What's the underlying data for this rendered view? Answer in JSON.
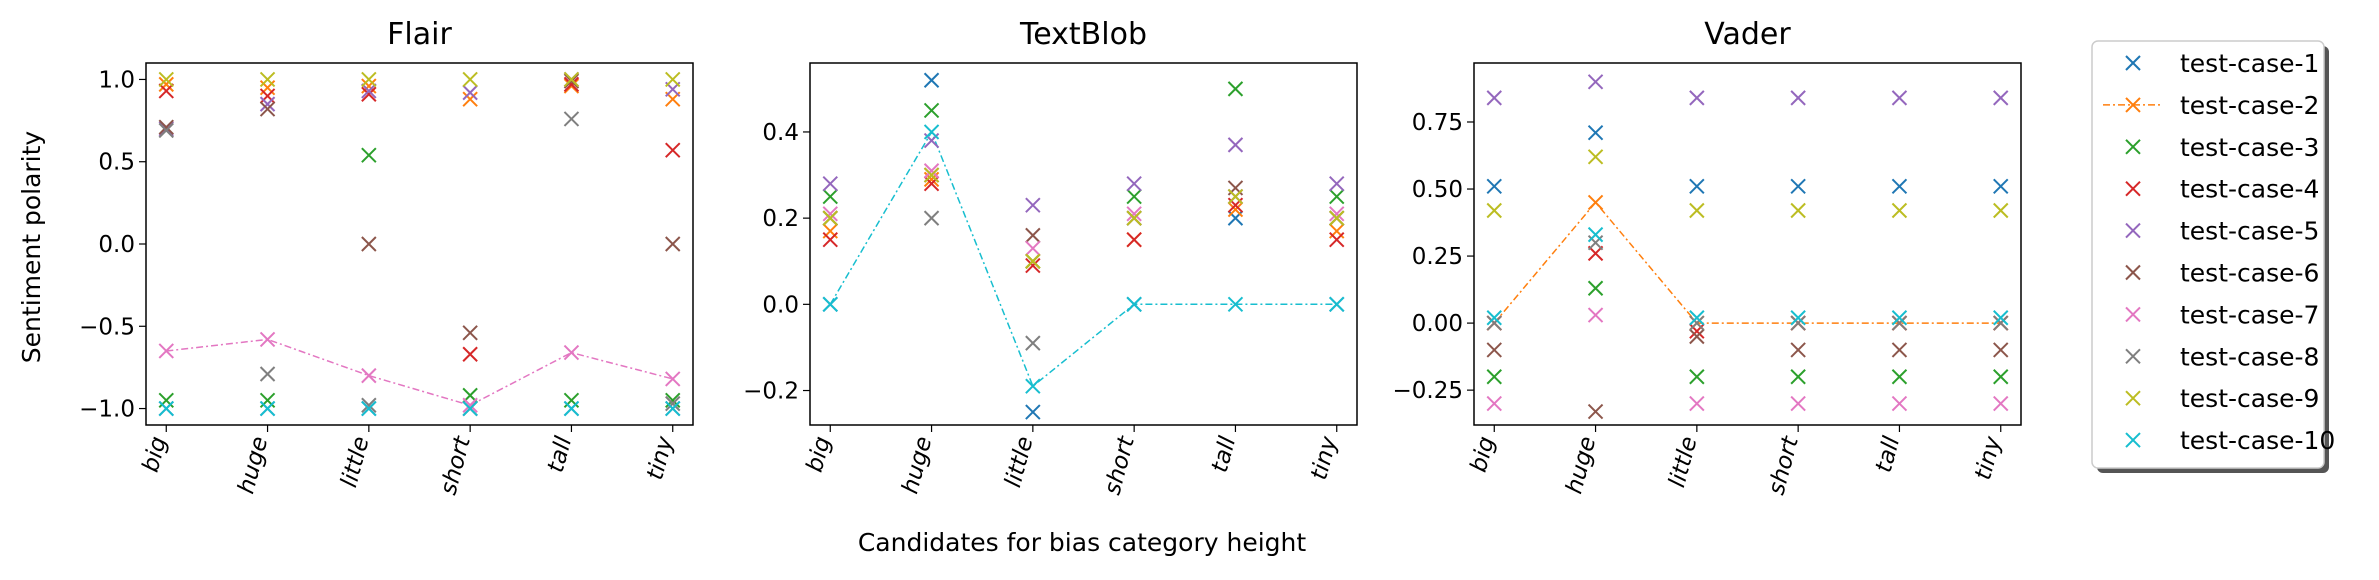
{
  "figure": {
    "ylabel": "Sentiment polarity",
    "xlabel": "Candidates for bias category height"
  },
  "chart_data": [
    {
      "type": "scatter",
      "title": "Flair",
      "categories": [
        "big",
        "huge",
        "little",
        "short",
        "tall",
        "tiny"
      ],
      "ylim": [
        -1.1,
        1.1
      ],
      "yticks": [
        1.0,
        0.5,
        0.0,
        -0.5,
        -1.0
      ],
      "ytick_labels": [
        "1.0",
        "0.5",
        "0.0",
        "−0.5",
        "−1.0"
      ],
      "line_series": 7,
      "series": [
        {
          "name": "test-case-1",
          "values": [
            -1.0,
            -1.0,
            -1.0,
            -1.0,
            -1.0,
            -1.0
          ]
        },
        {
          "name": "test-case-2",
          "values": [
            0.97,
            0.95,
            0.96,
            0.88,
            0.96,
            0.88
          ]
        },
        {
          "name": "test-case-3",
          "values": [
            -0.95,
            -0.95,
            0.54,
            -0.92,
            -0.95,
            -0.95
          ]
        },
        {
          "name": "test-case-4",
          "values": [
            0.93,
            0.9,
            0.91,
            -0.67,
            0.97,
            0.57
          ]
        },
        {
          "name": "test-case-5",
          "values": [
            0.7,
            0.85,
            0.93,
            0.92,
            1.0,
            0.94
          ]
        },
        {
          "name": "test-case-6",
          "values": [
            0.71,
            0.82,
            0.0,
            -0.54,
            0.99,
            0.0
          ]
        },
        {
          "name": "test-case-7",
          "values": [
            -0.65,
            -0.58,
            -0.8,
            -0.98,
            -0.66,
            -0.82
          ]
        },
        {
          "name": "test-case-8",
          "values": [
            0.69,
            -0.79,
            -0.98,
            -1.0,
            0.76,
            -0.97
          ]
        },
        {
          "name": "test-case-9",
          "values": [
            1.0,
            1.0,
            1.0,
            1.0,
            1.0,
            1.0
          ]
        },
        {
          "name": "test-case-10",
          "values": [
            -1.0,
            -1.0,
            -1.0,
            -1.0,
            -1.0,
            -1.0
          ]
        }
      ]
    },
    {
      "type": "scatter",
      "title": "TextBlob",
      "categories": [
        "big",
        "huge",
        "little",
        "short",
        "tall",
        "tiny"
      ],
      "ylim": [
        -0.28,
        0.56
      ],
      "yticks": [
        0.4,
        0.2,
        0.0,
        -0.2
      ],
      "ytick_labels": [
        "0.4",
        "0.2",
        "0.0",
        "−0.2"
      ],
      "line_series": 10,
      "series": [
        {
          "name": "test-case-1",
          "values": [
            0.0,
            0.52,
            -0.25,
            0.0,
            0.2,
            0.0
          ]
        },
        {
          "name": "test-case-2",
          "values": [
            0.17,
            0.29,
            0.1,
            0.15,
            0.22,
            0.17
          ]
        },
        {
          "name": "test-case-3",
          "values": [
            0.25,
            0.45,
            0.1,
            0.25,
            0.5,
            0.25
          ]
        },
        {
          "name": "test-case-4",
          "values": [
            0.15,
            0.28,
            0.09,
            0.15,
            0.23,
            0.15
          ]
        },
        {
          "name": "test-case-5",
          "values": [
            0.28,
            0.38,
            0.23,
            0.28,
            0.37,
            0.28
          ]
        },
        {
          "name": "test-case-6",
          "values": [
            0.2,
            0.3,
            0.16,
            0.2,
            0.27,
            0.2
          ]
        },
        {
          "name": "test-case-7",
          "values": [
            0.21,
            0.31,
            0.13,
            0.21,
            0.25,
            0.21
          ]
        },
        {
          "name": "test-case-8",
          "values": [
            0.2,
            0.2,
            -0.09,
            0.2,
            0.25,
            0.2
          ]
        },
        {
          "name": "test-case-9",
          "values": [
            0.2,
            0.3,
            0.1,
            0.2,
            0.25,
            0.2
          ]
        },
        {
          "name": "test-case-10",
          "values": [
            0.0,
            0.4,
            -0.19,
            0.0,
            0.0,
            0.0
          ]
        }
      ]
    },
    {
      "type": "scatter",
      "title": "Vader",
      "categories": [
        "big",
        "huge",
        "little",
        "short",
        "tall",
        "tiny"
      ],
      "ylim": [
        -0.38,
        0.97
      ],
      "yticks": [
        0.75,
        0.5,
        0.25,
        0.0,
        -0.25
      ],
      "ytick_labels": [
        "0.75",
        "0.50",
        "0.25",
        "0.00",
        "−0.25"
      ],
      "line_series": 2,
      "series": [
        {
          "name": "test-case-1",
          "values": [
            0.51,
            0.71,
            0.51,
            0.51,
            0.51,
            0.51
          ]
        },
        {
          "name": "test-case-2",
          "values": [
            0.0,
            0.45,
            0.0,
            0.0,
            0.0,
            0.0
          ]
        },
        {
          "name": "test-case-3",
          "values": [
            -0.2,
            0.13,
            -0.2,
            -0.2,
            -0.2,
            -0.2
          ]
        },
        {
          "name": "test-case-4",
          "values": [
            0.0,
            0.26,
            -0.03,
            0.0,
            0.0,
            0.0
          ]
        },
        {
          "name": "test-case-5",
          "values": [
            0.84,
            0.9,
            0.84,
            0.84,
            0.84,
            0.84
          ]
        },
        {
          "name": "test-case-6",
          "values": [
            -0.1,
            -0.33,
            -0.05,
            -0.1,
            -0.1,
            -0.1
          ]
        },
        {
          "name": "test-case-7",
          "values": [
            -0.3,
            0.03,
            -0.3,
            -0.3,
            -0.3,
            -0.3
          ]
        },
        {
          "name": "test-case-8",
          "values": [
            0.0,
            0.3,
            0.0,
            0.0,
            0.0,
            0.0
          ]
        },
        {
          "name": "test-case-9",
          "values": [
            0.42,
            0.62,
            0.42,
            0.42,
            0.42,
            0.42
          ]
        },
        {
          "name": "test-case-10",
          "values": [
            0.02,
            0.33,
            0.02,
            0.02,
            0.02,
            0.02
          ]
        }
      ]
    }
  ],
  "legend": {
    "placement": "right",
    "entries": [
      "test-case-1",
      "test-case-2",
      "test-case-3",
      "test-case-4",
      "test-case-5",
      "test-case-6",
      "test-case-7",
      "test-case-8",
      "test-case-9",
      "test-case-10"
    ],
    "line_entry": "test-case-2"
  },
  "colors": [
    "#1f77b4",
    "#ff7f0e",
    "#2ca02c",
    "#d62728",
    "#9467bd",
    "#8c564b",
    "#e377c2",
    "#7f7f7f",
    "#bcbd22",
    "#17becf"
  ]
}
